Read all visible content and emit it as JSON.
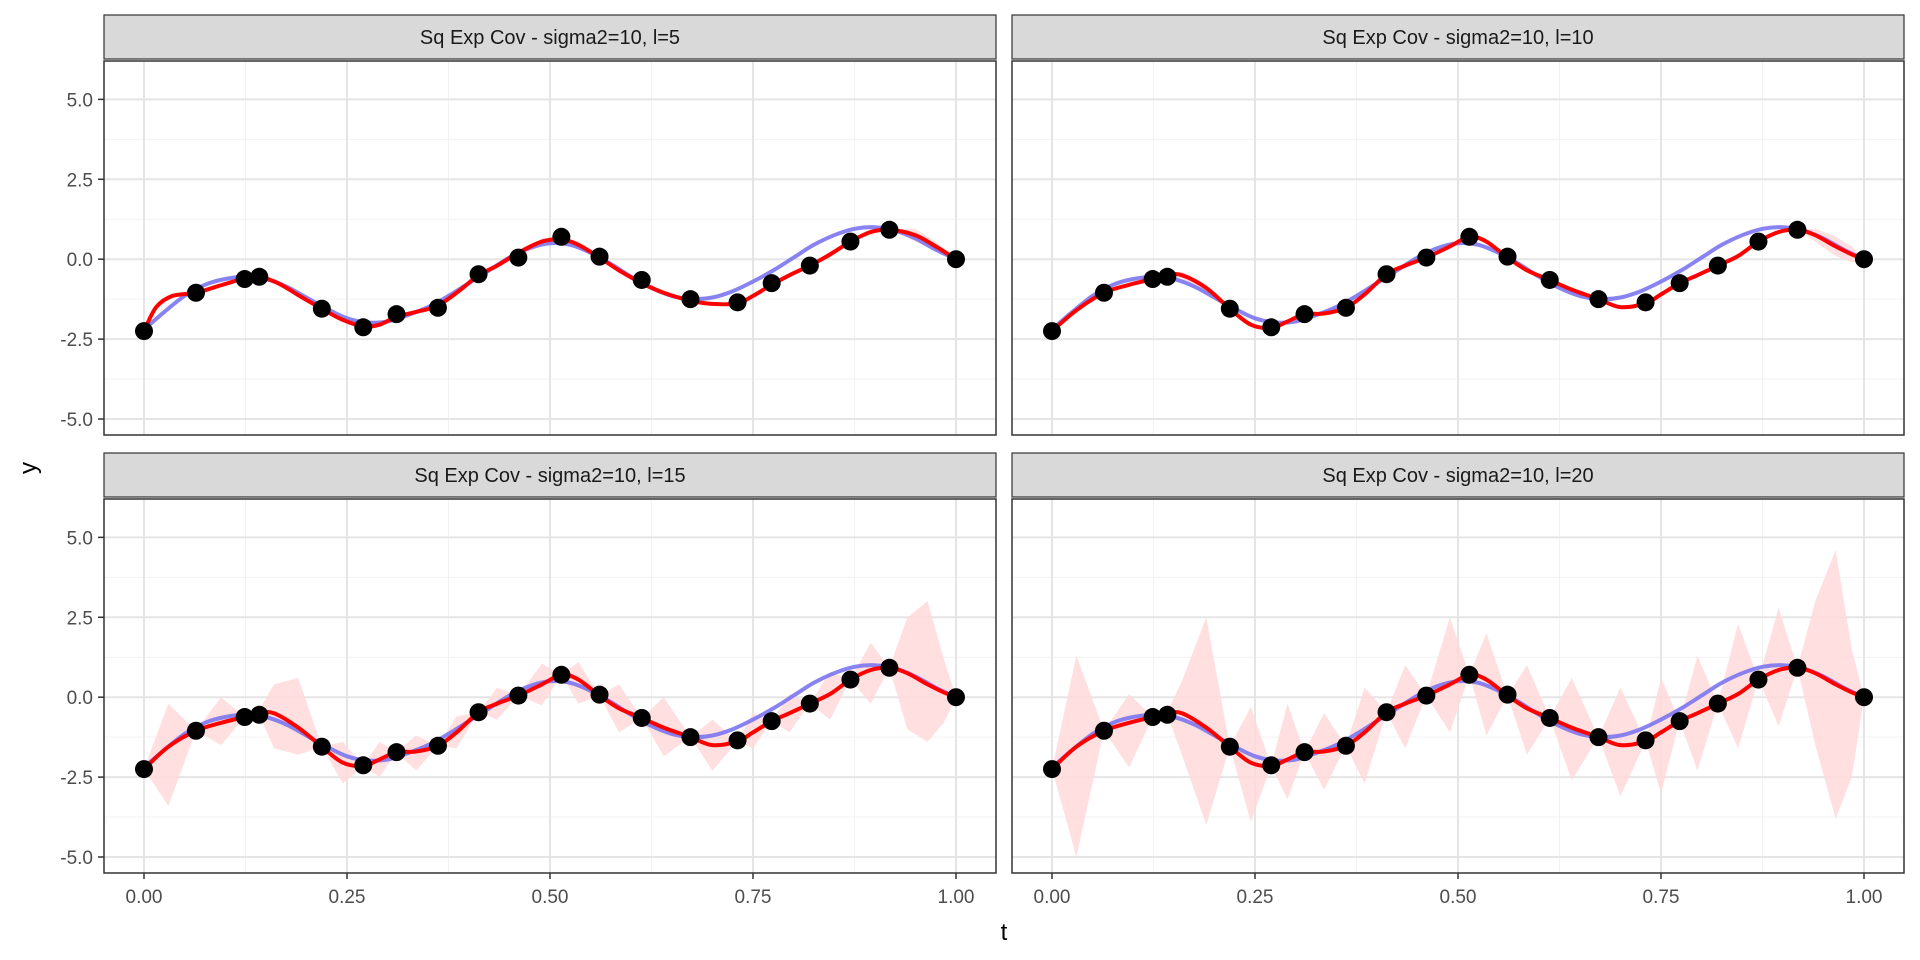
{
  "chart_data": {
    "type": "line",
    "xlabel": "t",
    "ylabel": "y",
    "xlim": [
      0,
      1
    ],
    "ylim": [
      -5.5,
      6.2
    ],
    "x_ticks": [
      0,
      0.25,
      0.5,
      0.75,
      1
    ],
    "x_tick_labels": [
      "0.00",
      "0.25",
      "0.50",
      "0.75",
      "1.00"
    ],
    "y_ticks": [
      -5,
      -2.5,
      0,
      2.5,
      5
    ],
    "y_tick_labels": [
      "-5.0",
      "-2.5",
      "0.0",
      "2.5",
      "5.0"
    ],
    "grid": true,
    "colors": {
      "true_function": "#7b75f0",
      "posterior_mean": "#ff0000",
      "band": "#ffd9d9",
      "points": "#000000",
      "strip_fill": "#d9d9d9",
      "grid_major": "#e5e5e5",
      "grid_minor": "#f2f2f2"
    },
    "observations": {
      "x": [
        0.0,
        0.064,
        0.124,
        0.142,
        0.219,
        0.27,
        0.311,
        0.362,
        0.412,
        0.461,
        0.514,
        0.561,
        0.613,
        0.673,
        0.731,
        0.773,
        0.82,
        0.87,
        0.918,
        1.0
      ],
      "y": [
        -2.25,
        -1.05,
        -0.62,
        -0.55,
        -1.55,
        -2.13,
        -1.72,
        -1.52,
        -0.47,
        0.05,
        0.7,
        0.08,
        -0.65,
        -1.25,
        -1.35,
        -0.75,
        -0.2,
        0.55,
        0.92,
        0.0
      ]
    },
    "true_function_x": [
      0.0,
      0.025,
      0.05,
      0.075,
      0.1,
      0.125,
      0.15,
      0.175,
      0.2,
      0.225,
      0.25,
      0.275,
      0.3,
      0.325,
      0.35,
      0.375,
      0.4,
      0.425,
      0.45,
      0.475,
      0.5,
      0.525,
      0.55,
      0.575,
      0.6,
      0.625,
      0.65,
      0.675,
      0.7,
      0.725,
      0.75,
      0.775,
      0.8,
      0.825,
      0.85,
      0.875,
      0.9,
      0.925,
      0.95,
      0.975,
      1.0
    ],
    "true_function_y": [
      -2.2,
      -1.65,
      -1.15,
      -0.8,
      -0.62,
      -0.55,
      -0.62,
      -0.85,
      -1.2,
      -1.55,
      -1.85,
      -1.98,
      -1.95,
      -1.75,
      -1.5,
      -1.15,
      -0.75,
      -0.35,
      0.05,
      0.35,
      0.5,
      0.45,
      0.2,
      -0.15,
      -0.55,
      -0.9,
      -1.15,
      -1.25,
      -1.2,
      -1.0,
      -0.7,
      -0.35,
      0.05,
      0.45,
      0.75,
      0.95,
      1.0,
      0.9,
      0.65,
      0.3,
      0.0
    ],
    "panels": [
      {
        "title": "Sq Exp Cov - sigma2=10, l=5",
        "mean_x": [
          0.0,
          0.015,
          0.035,
          0.064,
          0.09,
          0.124,
          0.142,
          0.165,
          0.195,
          0.219,
          0.245,
          0.27,
          0.29,
          0.311,
          0.335,
          0.362,
          0.39,
          0.412,
          0.435,
          0.461,
          0.49,
          0.514,
          0.535,
          0.561,
          0.585,
          0.613,
          0.64,
          0.673,
          0.7,
          0.731,
          0.75,
          0.773,
          0.795,
          0.82,
          0.845,
          0.87,
          0.895,
          0.918,
          0.95,
          0.975,
          1.0
        ],
        "mean_y": [
          -2.25,
          -1.5,
          -1.15,
          -1.05,
          -0.85,
          -0.6,
          -0.55,
          -0.75,
          -1.2,
          -1.55,
          -1.9,
          -2.1,
          -2.05,
          -1.8,
          -1.65,
          -1.45,
          -0.95,
          -0.5,
          -0.2,
          0.2,
          0.55,
          0.62,
          0.45,
          0.05,
          -0.35,
          -0.75,
          -1.05,
          -1.3,
          -1.4,
          -1.38,
          -1.15,
          -0.8,
          -0.5,
          -0.2,
          0.15,
          0.55,
          0.85,
          0.92,
          0.75,
          0.4,
          0.0
        ],
        "band_lower": [
          -2.25,
          -1.55,
          -1.2,
          -1.05,
          -0.9,
          -0.6,
          -0.55,
          -0.8,
          -1.25,
          -1.55,
          -1.95,
          -2.1,
          -2.1,
          -1.8,
          -1.7,
          -1.5,
          -1.0,
          -0.5,
          -0.25,
          0.05,
          0.45,
          0.7,
          0.35,
          0.08,
          -0.45,
          -0.65,
          -1.1,
          -1.25,
          -1.45,
          -1.35,
          -1.2,
          -0.75,
          -0.55,
          -0.2,
          0.05,
          0.55,
          0.75,
          0.92,
          0.55,
          0.25,
          0.0
        ],
        "band_upper": [
          -2.25,
          -1.45,
          -1.1,
          -1.05,
          -0.8,
          -0.6,
          -0.55,
          -0.7,
          -1.15,
          -1.55,
          -1.85,
          -2.1,
          -2.0,
          -1.8,
          -1.6,
          -1.4,
          -0.9,
          -0.5,
          -0.15,
          0.05,
          0.65,
          0.7,
          0.55,
          0.08,
          -0.25,
          -0.65,
          -1.0,
          -1.25,
          -1.35,
          -1.35,
          -1.1,
          -0.75,
          -0.45,
          -0.2,
          0.25,
          0.55,
          0.95,
          0.92,
          0.95,
          0.55,
          0.0
        ]
      },
      {
        "title": "Sq Exp Cov - sigma2=10, l=10",
        "mean_x": [
          0.0,
          0.03,
          0.064,
          0.095,
          0.124,
          0.142,
          0.16,
          0.19,
          0.219,
          0.245,
          0.27,
          0.29,
          0.311,
          0.335,
          0.362,
          0.385,
          0.412,
          0.435,
          0.461,
          0.49,
          0.514,
          0.535,
          0.561,
          0.585,
          0.613,
          0.64,
          0.673,
          0.7,
          0.731,
          0.75,
          0.773,
          0.795,
          0.82,
          0.845,
          0.87,
          0.895,
          0.918,
          0.94,
          0.965,
          0.985,
          1.0
        ],
        "mean_y": [
          -2.25,
          -1.6,
          -1.05,
          -0.8,
          -0.62,
          -0.5,
          -0.5,
          -0.9,
          -1.55,
          -2.05,
          -2.15,
          -1.95,
          -1.72,
          -1.7,
          -1.52,
          -1.1,
          -0.47,
          -0.2,
          0.05,
          0.4,
          0.7,
          0.55,
          0.05,
          -0.35,
          -0.65,
          -0.95,
          -1.25,
          -1.5,
          -1.38,
          -1.1,
          -0.75,
          -0.5,
          -0.2,
          0.1,
          0.55,
          0.85,
          0.92,
          0.75,
          0.4,
          0.15,
          0.0
        ],
        "band_lower": [
          -2.25,
          -1.65,
          -1.05,
          -0.85,
          -0.62,
          -0.55,
          -0.6,
          -1.0,
          -1.55,
          -2.1,
          -2.15,
          -2.0,
          -1.72,
          -1.75,
          -1.52,
          -1.15,
          -0.47,
          -0.25,
          0.05,
          0.35,
          0.7,
          0.5,
          0.05,
          -0.4,
          -0.65,
          -1.0,
          -1.25,
          -1.55,
          -1.38,
          -1.15,
          -0.75,
          -0.55,
          -0.2,
          0.05,
          0.55,
          0.8,
          0.92,
          0.55,
          0.1,
          -0.1,
          0.0
        ],
        "band_upper": [
          -2.25,
          -1.55,
          -1.05,
          -0.75,
          -0.62,
          -0.45,
          -0.4,
          -0.8,
          -1.55,
          -2.0,
          -2.15,
          -1.9,
          -1.72,
          -1.65,
          -1.52,
          -1.05,
          -0.47,
          -0.15,
          0.05,
          0.45,
          0.7,
          0.6,
          0.05,
          -0.3,
          -0.65,
          -0.9,
          -1.25,
          -1.45,
          -1.38,
          -1.05,
          -0.75,
          -0.45,
          -0.2,
          0.15,
          0.55,
          0.9,
          0.92,
          0.95,
          0.7,
          0.4,
          0.0
        ]
      },
      {
        "title": "Sq Exp Cov - sigma2=10, l=15",
        "mean_x": [
          0.0,
          0.03,
          0.064,
          0.095,
          0.124,
          0.142,
          0.16,
          0.19,
          0.219,
          0.245,
          0.27,
          0.29,
          0.311,
          0.335,
          0.362,
          0.385,
          0.412,
          0.435,
          0.461,
          0.49,
          0.514,
          0.535,
          0.561,
          0.585,
          0.613,
          0.64,
          0.673,
          0.7,
          0.731,
          0.75,
          0.773,
          0.795,
          0.82,
          0.845,
          0.87,
          0.895,
          0.918,
          0.94,
          0.965,
          0.985,
          1.0
        ],
        "mean_y": [
          -2.25,
          -1.55,
          -1.05,
          -0.8,
          -0.62,
          -0.5,
          -0.5,
          -0.95,
          -1.55,
          -2.05,
          -2.15,
          -1.95,
          -1.72,
          -1.7,
          -1.52,
          -1.1,
          -0.47,
          -0.2,
          0.05,
          0.4,
          0.7,
          0.55,
          0.05,
          -0.35,
          -0.65,
          -0.95,
          -1.25,
          -1.5,
          -1.38,
          -1.1,
          -0.75,
          -0.5,
          -0.2,
          0.1,
          0.55,
          0.85,
          0.92,
          0.75,
          0.4,
          0.15,
          0.0
        ],
        "band_lower": [
          -2.25,
          -3.4,
          -1.05,
          -1.5,
          -0.62,
          -0.55,
          -1.6,
          -1.8,
          -1.55,
          -2.7,
          -2.15,
          -2.5,
          -1.72,
          -2.3,
          -1.52,
          -1.6,
          -0.47,
          -0.7,
          0.05,
          -0.25,
          0.7,
          -0.2,
          0.05,
          -1.1,
          -0.65,
          -1.85,
          -1.25,
          -2.3,
          -1.38,
          -1.6,
          -0.75,
          -1.1,
          -0.2,
          -0.7,
          0.55,
          -0.2,
          0.92,
          -1.0,
          -1.4,
          -0.8,
          0.0
        ],
        "band_upper": [
          -2.25,
          -0.2,
          -1.05,
          0.0,
          -0.62,
          -0.4,
          0.4,
          0.6,
          -1.55,
          -1.4,
          -2.15,
          -1.4,
          -1.72,
          -1.2,
          -1.52,
          -0.6,
          -0.47,
          0.3,
          0.05,
          1.05,
          0.7,
          1.1,
          0.05,
          0.4,
          -0.65,
          0.0,
          -1.25,
          -0.7,
          -1.38,
          -0.5,
          -0.75,
          0.1,
          -0.2,
          0.8,
          0.55,
          1.7,
          0.92,
          2.5,
          3.0,
          1.2,
          0.0
        ]
      },
      {
        "title": "Sq Exp Cov - sigma2=10, l=20",
        "mean_x": [
          0.0,
          0.03,
          0.064,
          0.095,
          0.124,
          0.142,
          0.16,
          0.19,
          0.219,
          0.245,
          0.27,
          0.29,
          0.311,
          0.335,
          0.362,
          0.385,
          0.412,
          0.435,
          0.461,
          0.49,
          0.514,
          0.535,
          0.561,
          0.585,
          0.613,
          0.64,
          0.673,
          0.7,
          0.731,
          0.75,
          0.773,
          0.795,
          0.82,
          0.845,
          0.87,
          0.895,
          0.918,
          0.94,
          0.965,
          0.985,
          1.0
        ],
        "mean_y": [
          -2.25,
          -1.55,
          -1.05,
          -0.8,
          -0.62,
          -0.5,
          -0.5,
          -0.95,
          -1.55,
          -2.05,
          -2.15,
          -1.95,
          -1.72,
          -1.7,
          -1.52,
          -1.1,
          -0.47,
          -0.2,
          0.05,
          0.4,
          0.7,
          0.55,
          0.05,
          -0.35,
          -0.65,
          -0.95,
          -1.25,
          -1.5,
          -1.38,
          -1.1,
          -0.75,
          -0.5,
          -0.2,
          0.1,
          0.55,
          0.85,
          0.92,
          0.75,
          0.4,
          0.15,
          0.0
        ],
        "band_lower": [
          -2.25,
          -5.0,
          -1.05,
          -2.2,
          -0.62,
          -0.55,
          -1.8,
          -4.0,
          -1.55,
          -3.9,
          -2.15,
          -3.2,
          -1.72,
          -2.9,
          -1.52,
          -2.7,
          -0.47,
          -1.6,
          0.05,
          -1.1,
          0.7,
          -1.2,
          0.05,
          -1.8,
          -0.65,
          -2.6,
          -1.25,
          -3.1,
          -1.38,
          -3.0,
          -0.75,
          -2.3,
          -0.2,
          -1.6,
          0.55,
          -0.9,
          0.92,
          -1.5,
          -3.8,
          -2.5,
          0.0
        ],
        "band_upper": [
          -2.25,
          1.3,
          -1.05,
          0.1,
          -0.62,
          -0.45,
          0.5,
          2.5,
          -1.55,
          -0.3,
          -2.15,
          -0.2,
          -1.72,
          -0.5,
          -1.52,
          0.3,
          -0.47,
          1.0,
          0.05,
          2.5,
          0.7,
          2.0,
          0.05,
          1.0,
          -0.65,
          0.6,
          -1.25,
          0.3,
          -1.38,
          0.6,
          -0.75,
          1.3,
          -0.2,
          2.3,
          0.55,
          2.8,
          0.92,
          3.0,
          4.6,
          1.5,
          0.0
        ]
      }
    ]
  }
}
